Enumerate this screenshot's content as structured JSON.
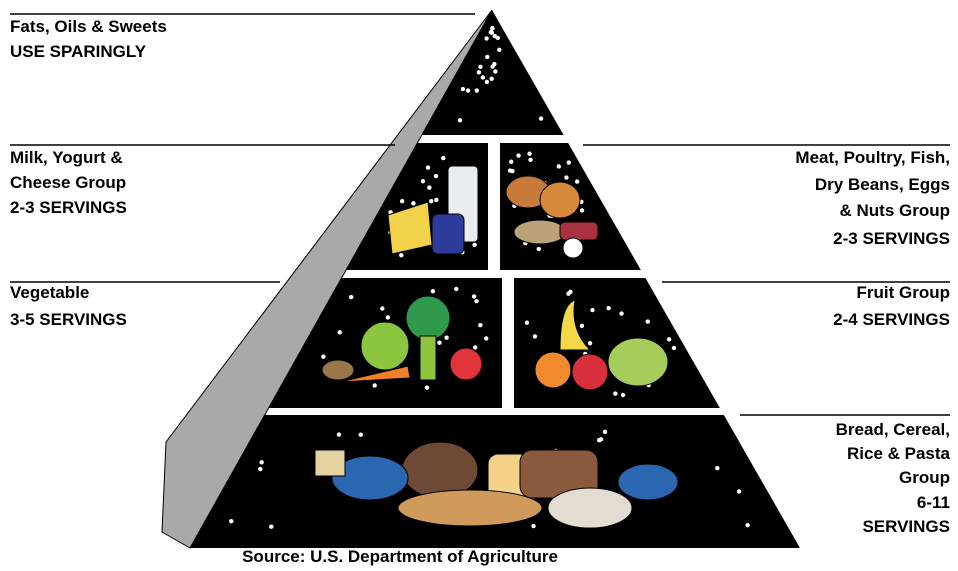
{
  "groups": [
    {
      "lines": [
        "Fats, Oils & Sweets",
        "USE SPARINGLY"
      ]
    },
    {
      "lines": [
        "Milk, Yogurt &",
        "Cheese Group",
        "2-3 SERVINGS"
      ]
    },
    {
      "lines": [
        "Meat, Poultry, Fish,",
        "Dry Beans, Eggs",
        "& Nuts Group",
        "2-3 SERVINGS"
      ]
    },
    {
      "lines": [
        "Vegetable",
        "3-5 SERVINGS"
      ]
    },
    {
      "lines": [
        "Fruit Group",
        "2-4 SERVINGS"
      ]
    },
    {
      "lines": [
        "Bread, Cereal,",
        "Rice & Pasta",
        "Group",
        "6-11",
        "SERVINGS"
      ]
    }
  ],
  "source": "Source: U.S. Department of Agriculture"
}
